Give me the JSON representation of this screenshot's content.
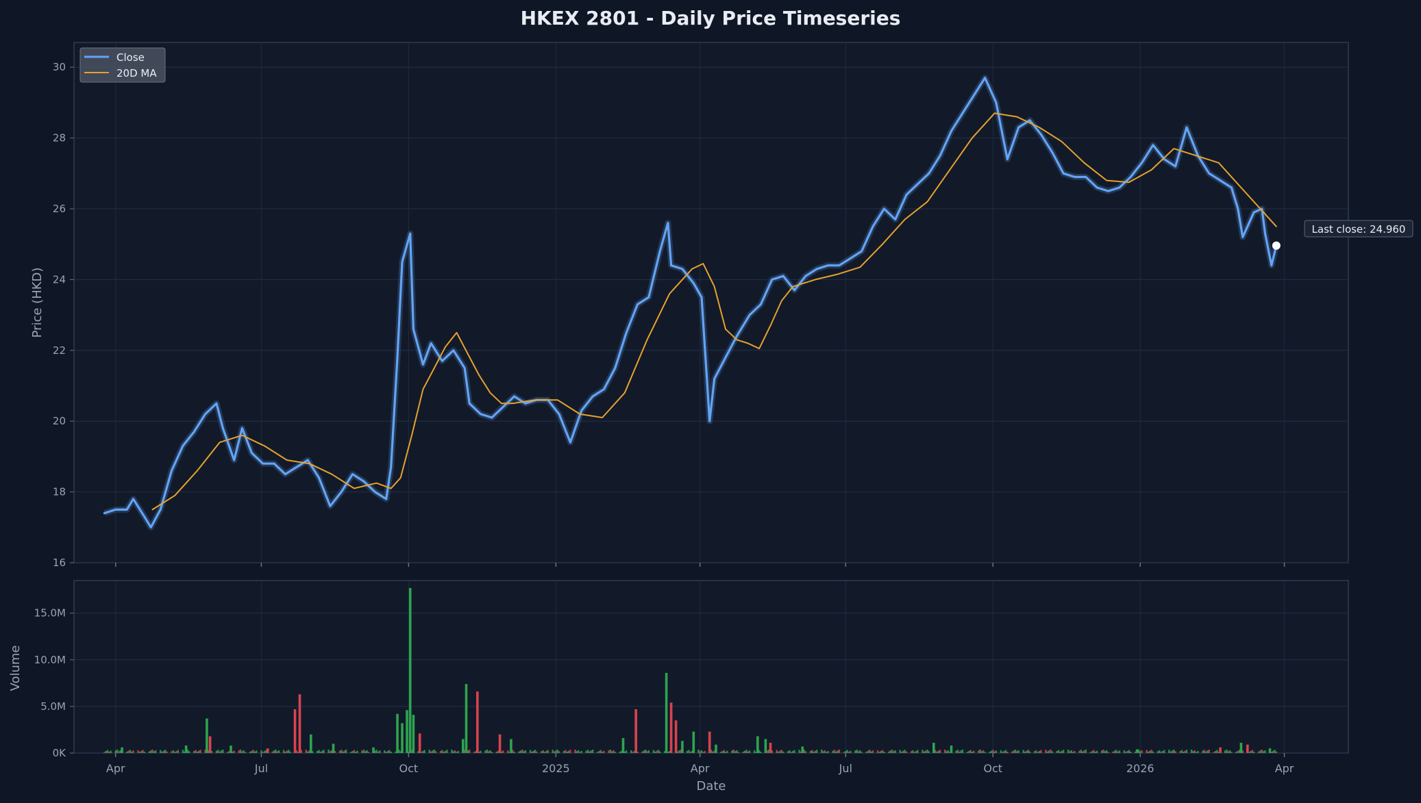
{
  "chart_data": {
    "type": "line",
    "title": "HKEX 2801 - Daily Price Timeseries",
    "price_panel": {
      "ylabel": "Price (HKD)",
      "ylim": [
        16,
        30.7
      ],
      "yticks": [
        16,
        18,
        20,
        22,
        24,
        26,
        28,
        30
      ],
      "grid": true,
      "legend_position": "top-left",
      "series": [
        {
          "name": "Close",
          "color": "#63a4f5",
          "points": [
            [
              "2024-03-25",
              17.4
            ],
            [
              "2024-04-01",
              17.5
            ],
            [
              "2024-04-08",
              17.5
            ],
            [
              "2024-04-12",
              17.8
            ],
            [
              "2024-04-19",
              17.3
            ],
            [
              "2024-04-23",
              17.0
            ],
            [
              "2024-04-29",
              17.5
            ],
            [
              "2024-05-06",
              18.6
            ],
            [
              "2024-05-13",
              19.3
            ],
            [
              "2024-05-20",
              19.7
            ],
            [
              "2024-05-27",
              20.2
            ],
            [
              "2024-06-03",
              20.5
            ],
            [
              "2024-06-07",
              19.8
            ],
            [
              "2024-06-14",
              18.9
            ],
            [
              "2024-06-19",
              19.8
            ],
            [
              "2024-06-25",
              19.1
            ],
            [
              "2024-07-02",
              18.8
            ],
            [
              "2024-07-09",
              18.8
            ],
            [
              "2024-07-16",
              18.5
            ],
            [
              "2024-07-23",
              18.7
            ],
            [
              "2024-07-30",
              18.9
            ],
            [
              "2024-08-06",
              18.4
            ],
            [
              "2024-08-13",
              17.6
            ],
            [
              "2024-08-20",
              18.0
            ],
            [
              "2024-08-27",
              18.5
            ],
            [
              "2024-09-03",
              18.3
            ],
            [
              "2024-09-10",
              18.0
            ],
            [
              "2024-09-17",
              17.8
            ],
            [
              "2024-09-20",
              18.7
            ],
            [
              "2024-09-24",
              21.8
            ],
            [
              "2024-09-27",
              24.5
            ],
            [
              "2024-10-02",
              25.3
            ],
            [
              "2024-10-04",
              22.6
            ],
            [
              "2024-10-10",
              21.6
            ],
            [
              "2024-10-15",
              22.2
            ],
            [
              "2024-10-22",
              21.7
            ],
            [
              "2024-10-29",
              22.0
            ],
            [
              "2024-11-05",
              21.5
            ],
            [
              "2024-11-08",
              20.5
            ],
            [
              "2024-11-15",
              20.2
            ],
            [
              "2024-11-22",
              20.1
            ],
            [
              "2024-11-29",
              20.4
            ],
            [
              "2024-12-06",
              20.7
            ],
            [
              "2024-12-13",
              20.5
            ],
            [
              "2024-12-20",
              20.6
            ],
            [
              "2024-12-27",
              20.6
            ],
            [
              "2025-01-03",
              20.2
            ],
            [
              "2025-01-10",
              19.4
            ],
            [
              "2025-01-17",
              20.3
            ],
            [
              "2025-01-24",
              20.7
            ],
            [
              "2025-01-31",
              20.9
            ],
            [
              "2025-02-07",
              21.5
            ],
            [
              "2025-02-14",
              22.5
            ],
            [
              "2025-02-21",
              23.3
            ],
            [
              "2025-02-28",
              23.5
            ],
            [
              "2025-03-07",
              24.8
            ],
            [
              "2025-03-12",
              25.6
            ],
            [
              "2025-03-14",
              24.4
            ],
            [
              "2025-03-21",
              24.3
            ],
            [
              "2025-03-28",
              23.9
            ],
            [
              "2025-04-02",
              23.5
            ],
            [
              "2025-04-07",
              20.0
            ],
            [
              "2025-04-10",
              21.2
            ],
            [
              "2025-04-17",
              21.8
            ],
            [
              "2025-04-24",
              22.4
            ],
            [
              "2025-05-02",
              23.0
            ],
            [
              "2025-05-09",
              23.3
            ],
            [
              "2025-05-16",
              24.0
            ],
            [
              "2025-05-23",
              24.1
            ],
            [
              "2025-05-30",
              23.7
            ],
            [
              "2025-06-06",
              24.1
            ],
            [
              "2025-06-13",
              24.3
            ],
            [
              "2025-06-20",
              24.4
            ],
            [
              "2025-06-27",
              24.4
            ],
            [
              "2025-07-04",
              24.6
            ],
            [
              "2025-07-11",
              24.8
            ],
            [
              "2025-07-18",
              25.5
            ],
            [
              "2025-07-25",
              26.0
            ],
            [
              "2025-08-01",
              25.7
            ],
            [
              "2025-08-08",
              26.4
            ],
            [
              "2025-08-15",
              26.7
            ],
            [
              "2025-08-22",
              27.0
            ],
            [
              "2025-08-29",
              27.5
            ],
            [
              "2025-09-05",
              28.2
            ],
            [
              "2025-09-12",
              28.7
            ],
            [
              "2025-09-19",
              29.2
            ],
            [
              "2025-09-26",
              29.7
            ],
            [
              "2025-10-03",
              29.0
            ],
            [
              "2025-10-10",
              27.4
            ],
            [
              "2025-10-17",
              28.3
            ],
            [
              "2025-10-24",
              28.5
            ],
            [
              "2025-10-31",
              28.1
            ],
            [
              "2025-11-07",
              27.6
            ],
            [
              "2025-11-14",
              27.0
            ],
            [
              "2025-11-21",
              26.9
            ],
            [
              "2025-11-28",
              26.9
            ],
            [
              "2025-12-05",
              26.6
            ],
            [
              "2025-12-12",
              26.5
            ],
            [
              "2025-12-19",
              26.6
            ],
            [
              "2025-12-26",
              26.9
            ],
            [
              "2026-01-02",
              27.3
            ],
            [
              "2026-01-09",
              27.8
            ],
            [
              "2026-01-16",
              27.4
            ],
            [
              "2026-01-23",
              27.2
            ],
            [
              "2026-01-30",
              28.3
            ],
            [
              "2026-02-06",
              27.5
            ],
            [
              "2026-02-13",
              27.0
            ],
            [
              "2026-02-20",
              26.8
            ],
            [
              "2026-02-27",
              26.6
            ],
            [
              "2026-03-03",
              26.0
            ],
            [
              "2026-03-06",
              25.2
            ],
            [
              "2026-03-10",
              25.6
            ],
            [
              "2026-03-13",
              25.9
            ],
            [
              "2026-03-18",
              26.0
            ],
            [
              "2026-03-20",
              25.3
            ],
            [
              "2026-03-24",
              24.4
            ],
            [
              "2026-03-27",
              24.96
            ]
          ]
        },
        {
          "name": "20D MA",
          "color": "#e8a22b",
          "points": [
            [
              "2024-04-24",
              17.5
            ],
            [
              "2024-05-08",
              17.9
            ],
            [
              "2024-05-22",
              18.6
            ],
            [
              "2024-06-05",
              19.4
            ],
            [
              "2024-06-19",
              19.6
            ],
            [
              "2024-07-03",
              19.3
            ],
            [
              "2024-07-17",
              18.9
            ],
            [
              "2024-07-31",
              18.8
            ],
            [
              "2024-08-14",
              18.5
            ],
            [
              "2024-08-28",
              18.1
            ],
            [
              "2024-09-11",
              18.25
            ],
            [
              "2024-09-20",
              18.1
            ],
            [
              "2024-09-26",
              18.4
            ],
            [
              "2024-10-03",
              19.6
            ],
            [
              "2024-10-10",
              20.9
            ],
            [
              "2024-10-17",
              21.5
            ],
            [
              "2024-10-24",
              22.1
            ],
            [
              "2024-10-31",
              22.5
            ],
            [
              "2024-11-07",
              21.9
            ],
            [
              "2024-11-14",
              21.3
            ],
            [
              "2024-11-21",
              20.8
            ],
            [
              "2024-11-28",
              20.5
            ],
            [
              "2024-12-05",
              20.5
            ],
            [
              "2024-12-19",
              20.6
            ],
            [
              "2025-01-02",
              20.6
            ],
            [
              "2025-01-16",
              20.2
            ],
            [
              "2025-01-30",
              20.1
            ],
            [
              "2025-02-13",
              20.8
            ],
            [
              "2025-02-27",
              22.3
            ],
            [
              "2025-03-13",
              23.6
            ],
            [
              "2025-03-27",
              24.3
            ],
            [
              "2025-04-03",
              24.45
            ],
            [
              "2025-04-10",
              23.8
            ],
            [
              "2025-04-17",
              22.6
            ],
            [
              "2025-04-24",
              22.3
            ],
            [
              "2025-05-01",
              22.2
            ],
            [
              "2025-05-08",
              22.05
            ],
            [
              "2025-05-15",
              22.7
            ],
            [
              "2025-05-22",
              23.4
            ],
            [
              "2025-05-29",
              23.8
            ],
            [
              "2025-06-12",
              24.0
            ],
            [
              "2025-06-26",
              24.15
            ],
            [
              "2025-07-10",
              24.35
            ],
            [
              "2025-07-24",
              25.0
            ],
            [
              "2025-08-07",
              25.7
            ],
            [
              "2025-08-21",
              26.2
            ],
            [
              "2025-09-04",
              27.1
            ],
            [
              "2025-09-18",
              28.0
            ],
            [
              "2025-10-02",
              28.7
            ],
            [
              "2025-10-16",
              28.6
            ],
            [
              "2025-10-30",
              28.3
            ],
            [
              "2025-11-13",
              27.9
            ],
            [
              "2025-11-27",
              27.3
            ],
            [
              "2025-12-11",
              26.8
            ],
            [
              "2025-12-25",
              26.75
            ],
            [
              "2026-01-08",
              27.1
            ],
            [
              "2026-01-22",
              27.7
            ],
            [
              "2026-02-05",
              27.5
            ],
            [
              "2026-02-19",
              27.3
            ],
            [
              "2026-03-05",
              26.6
            ],
            [
              "2026-03-19",
              25.9
            ],
            [
              "2026-03-27",
              25.5
            ]
          ]
        }
      ],
      "annotation": {
        "text": "Last close: 24.960",
        "x": "2026-03-27",
        "y": 24.96
      }
    },
    "volume_panel": {
      "ylabel": "Volume",
      "ylim": [
        0,
        18.5
      ],
      "unit": "M",
      "ytick_values": [
        0,
        5,
        10,
        15
      ],
      "ytick_labels": [
        "0K",
        "5.0M",
        "10.0M",
        "15.0M"
      ],
      "up_color": "#2ea44f",
      "down_color": "#d9434d",
      "bars": [
        [
          "2024-04-05",
          0.6,
          "up"
        ],
        [
          "2024-05-15",
          0.8,
          "up"
        ],
        [
          "2024-05-28",
          3.7,
          "up"
        ],
        [
          "2024-05-30",
          1.8,
          "down"
        ],
        [
          "2024-06-12",
          0.8,
          "up"
        ],
        [
          "2024-07-05",
          0.5,
          "down"
        ],
        [
          "2024-07-22",
          4.7,
          "down"
        ],
        [
          "2024-07-25",
          6.3,
          "down"
        ],
        [
          "2024-08-01",
          2.0,
          "up"
        ],
        [
          "2024-08-15",
          1.0,
          "up"
        ],
        [
          "2024-09-09",
          0.6,
          "up"
        ],
        [
          "2024-09-24",
          4.2,
          "up"
        ],
        [
          "2024-09-27",
          3.2,
          "up"
        ],
        [
          "2024-09-30",
          4.6,
          "up"
        ],
        [
          "2024-10-02",
          17.7,
          "up"
        ],
        [
          "2024-10-04",
          4.1,
          "up"
        ],
        [
          "2024-10-08",
          2.1,
          "down"
        ],
        [
          "2024-11-04",
          1.5,
          "up"
        ],
        [
          "2024-11-06",
          7.4,
          "up"
        ],
        [
          "2024-11-13",
          6.6,
          "down"
        ],
        [
          "2024-11-27",
          2.0,
          "down"
        ],
        [
          "2024-12-04",
          1.5,
          "up"
        ],
        [
          "2025-02-12",
          1.6,
          "up"
        ],
        [
          "2025-02-20",
          4.7,
          "down"
        ],
        [
          "2025-03-11",
          8.6,
          "up"
        ],
        [
          "2025-03-14",
          5.4,
          "down"
        ],
        [
          "2025-03-17",
          3.5,
          "down"
        ],
        [
          "2025-03-21",
          1.3,
          "up"
        ],
        [
          "2025-03-28",
          2.3,
          "up"
        ],
        [
          "2025-04-07",
          2.3,
          "down"
        ],
        [
          "2025-04-11",
          0.9,
          "up"
        ],
        [
          "2025-05-07",
          1.8,
          "up"
        ],
        [
          "2025-05-12",
          1.5,
          "up"
        ],
        [
          "2025-05-15",
          1.1,
          "down"
        ],
        [
          "2025-06-04",
          0.7,
          "up"
        ],
        [
          "2025-08-25",
          1.1,
          "up"
        ],
        [
          "2025-09-05",
          0.8,
          "up"
        ],
        [
          "2025-12-30",
          0.4,
          "up"
        ],
        [
          "2026-02-20",
          0.6,
          "down"
        ],
        [
          "2026-03-05",
          1.1,
          "up"
        ],
        [
          "2026-03-09",
          0.9,
          "down"
        ],
        [
          "2026-03-23",
          0.5,
          "up"
        ]
      ],
      "baseline_range": [
        "2024-03-25",
        "2026-03-27"
      ]
    },
    "xlabel": "Date",
    "x_axis": {
      "type": "date",
      "range": [
        "2024-03-06",
        "2026-05-11"
      ],
      "ticks": [
        {
          "date": "2024-04-01",
          "label": "Apr"
        },
        {
          "date": "2024-07-01",
          "label": "Jul"
        },
        {
          "date": "2024-10-01",
          "label": "Oct"
        },
        {
          "date": "2025-01-01",
          "label": "2025"
        },
        {
          "date": "2025-04-01",
          "label": "Apr"
        },
        {
          "date": "2025-07-01",
          "label": "Jul"
        },
        {
          "date": "2025-10-01",
          "label": "Oct"
        },
        {
          "date": "2026-01-01",
          "label": "2026"
        },
        {
          "date": "2026-04-01",
          "label": "Apr"
        }
      ]
    }
  }
}
